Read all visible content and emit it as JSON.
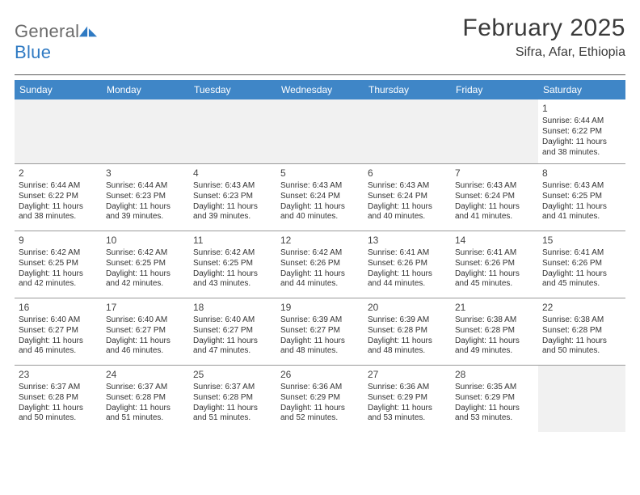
{
  "brand": {
    "word1": "General",
    "word2": "Blue"
  },
  "title": {
    "month": "February 2025",
    "location": "Sifra, Afar, Ethiopia"
  },
  "colors": {
    "header_bg": "#3f86c7",
    "header_text": "#ffffff",
    "rule": "#9a9a9a",
    "empty_bg": "#f1f1f1",
    "brand_gray": "#6b6b6b",
    "brand_blue": "#2f7ac3"
  },
  "dow": [
    "Sunday",
    "Monday",
    "Tuesday",
    "Wednesday",
    "Thursday",
    "Friday",
    "Saturday"
  ],
  "weeks": [
    [
      null,
      null,
      null,
      null,
      null,
      null,
      {
        "n": "1",
        "sr": "6:44 AM",
        "ss": "6:22 PM",
        "dl": "11 hours and 38 minutes."
      }
    ],
    [
      {
        "n": "2",
        "sr": "6:44 AM",
        "ss": "6:22 PM",
        "dl": "11 hours and 38 minutes."
      },
      {
        "n": "3",
        "sr": "6:44 AM",
        "ss": "6:23 PM",
        "dl": "11 hours and 39 minutes."
      },
      {
        "n": "4",
        "sr": "6:43 AM",
        "ss": "6:23 PM",
        "dl": "11 hours and 39 minutes."
      },
      {
        "n": "5",
        "sr": "6:43 AM",
        "ss": "6:24 PM",
        "dl": "11 hours and 40 minutes."
      },
      {
        "n": "6",
        "sr": "6:43 AM",
        "ss": "6:24 PM",
        "dl": "11 hours and 40 minutes."
      },
      {
        "n": "7",
        "sr": "6:43 AM",
        "ss": "6:24 PM",
        "dl": "11 hours and 41 minutes."
      },
      {
        "n": "8",
        "sr": "6:43 AM",
        "ss": "6:25 PM",
        "dl": "11 hours and 41 minutes."
      }
    ],
    [
      {
        "n": "9",
        "sr": "6:42 AM",
        "ss": "6:25 PM",
        "dl": "11 hours and 42 minutes."
      },
      {
        "n": "10",
        "sr": "6:42 AM",
        "ss": "6:25 PM",
        "dl": "11 hours and 42 minutes."
      },
      {
        "n": "11",
        "sr": "6:42 AM",
        "ss": "6:25 PM",
        "dl": "11 hours and 43 minutes."
      },
      {
        "n": "12",
        "sr": "6:42 AM",
        "ss": "6:26 PM",
        "dl": "11 hours and 44 minutes."
      },
      {
        "n": "13",
        "sr": "6:41 AM",
        "ss": "6:26 PM",
        "dl": "11 hours and 44 minutes."
      },
      {
        "n": "14",
        "sr": "6:41 AM",
        "ss": "6:26 PM",
        "dl": "11 hours and 45 minutes."
      },
      {
        "n": "15",
        "sr": "6:41 AM",
        "ss": "6:26 PM",
        "dl": "11 hours and 45 minutes."
      }
    ],
    [
      {
        "n": "16",
        "sr": "6:40 AM",
        "ss": "6:27 PM",
        "dl": "11 hours and 46 minutes."
      },
      {
        "n": "17",
        "sr": "6:40 AM",
        "ss": "6:27 PM",
        "dl": "11 hours and 46 minutes."
      },
      {
        "n": "18",
        "sr": "6:40 AM",
        "ss": "6:27 PM",
        "dl": "11 hours and 47 minutes."
      },
      {
        "n": "19",
        "sr": "6:39 AM",
        "ss": "6:27 PM",
        "dl": "11 hours and 48 minutes."
      },
      {
        "n": "20",
        "sr": "6:39 AM",
        "ss": "6:28 PM",
        "dl": "11 hours and 48 minutes."
      },
      {
        "n": "21",
        "sr": "6:38 AM",
        "ss": "6:28 PM",
        "dl": "11 hours and 49 minutes."
      },
      {
        "n": "22",
        "sr": "6:38 AM",
        "ss": "6:28 PM",
        "dl": "11 hours and 50 minutes."
      }
    ],
    [
      {
        "n": "23",
        "sr": "6:37 AM",
        "ss": "6:28 PM",
        "dl": "11 hours and 50 minutes."
      },
      {
        "n": "24",
        "sr": "6:37 AM",
        "ss": "6:28 PM",
        "dl": "11 hours and 51 minutes."
      },
      {
        "n": "25",
        "sr": "6:37 AM",
        "ss": "6:28 PM",
        "dl": "11 hours and 51 minutes."
      },
      {
        "n": "26",
        "sr": "6:36 AM",
        "ss": "6:29 PM",
        "dl": "11 hours and 52 minutes."
      },
      {
        "n": "27",
        "sr": "6:36 AM",
        "ss": "6:29 PM",
        "dl": "11 hours and 53 minutes."
      },
      {
        "n": "28",
        "sr": "6:35 AM",
        "ss": "6:29 PM",
        "dl": "11 hours and 53 minutes."
      },
      null
    ]
  ],
  "labels": {
    "sunrise": "Sunrise:",
    "sunset": "Sunset:",
    "daylight": "Daylight:"
  }
}
